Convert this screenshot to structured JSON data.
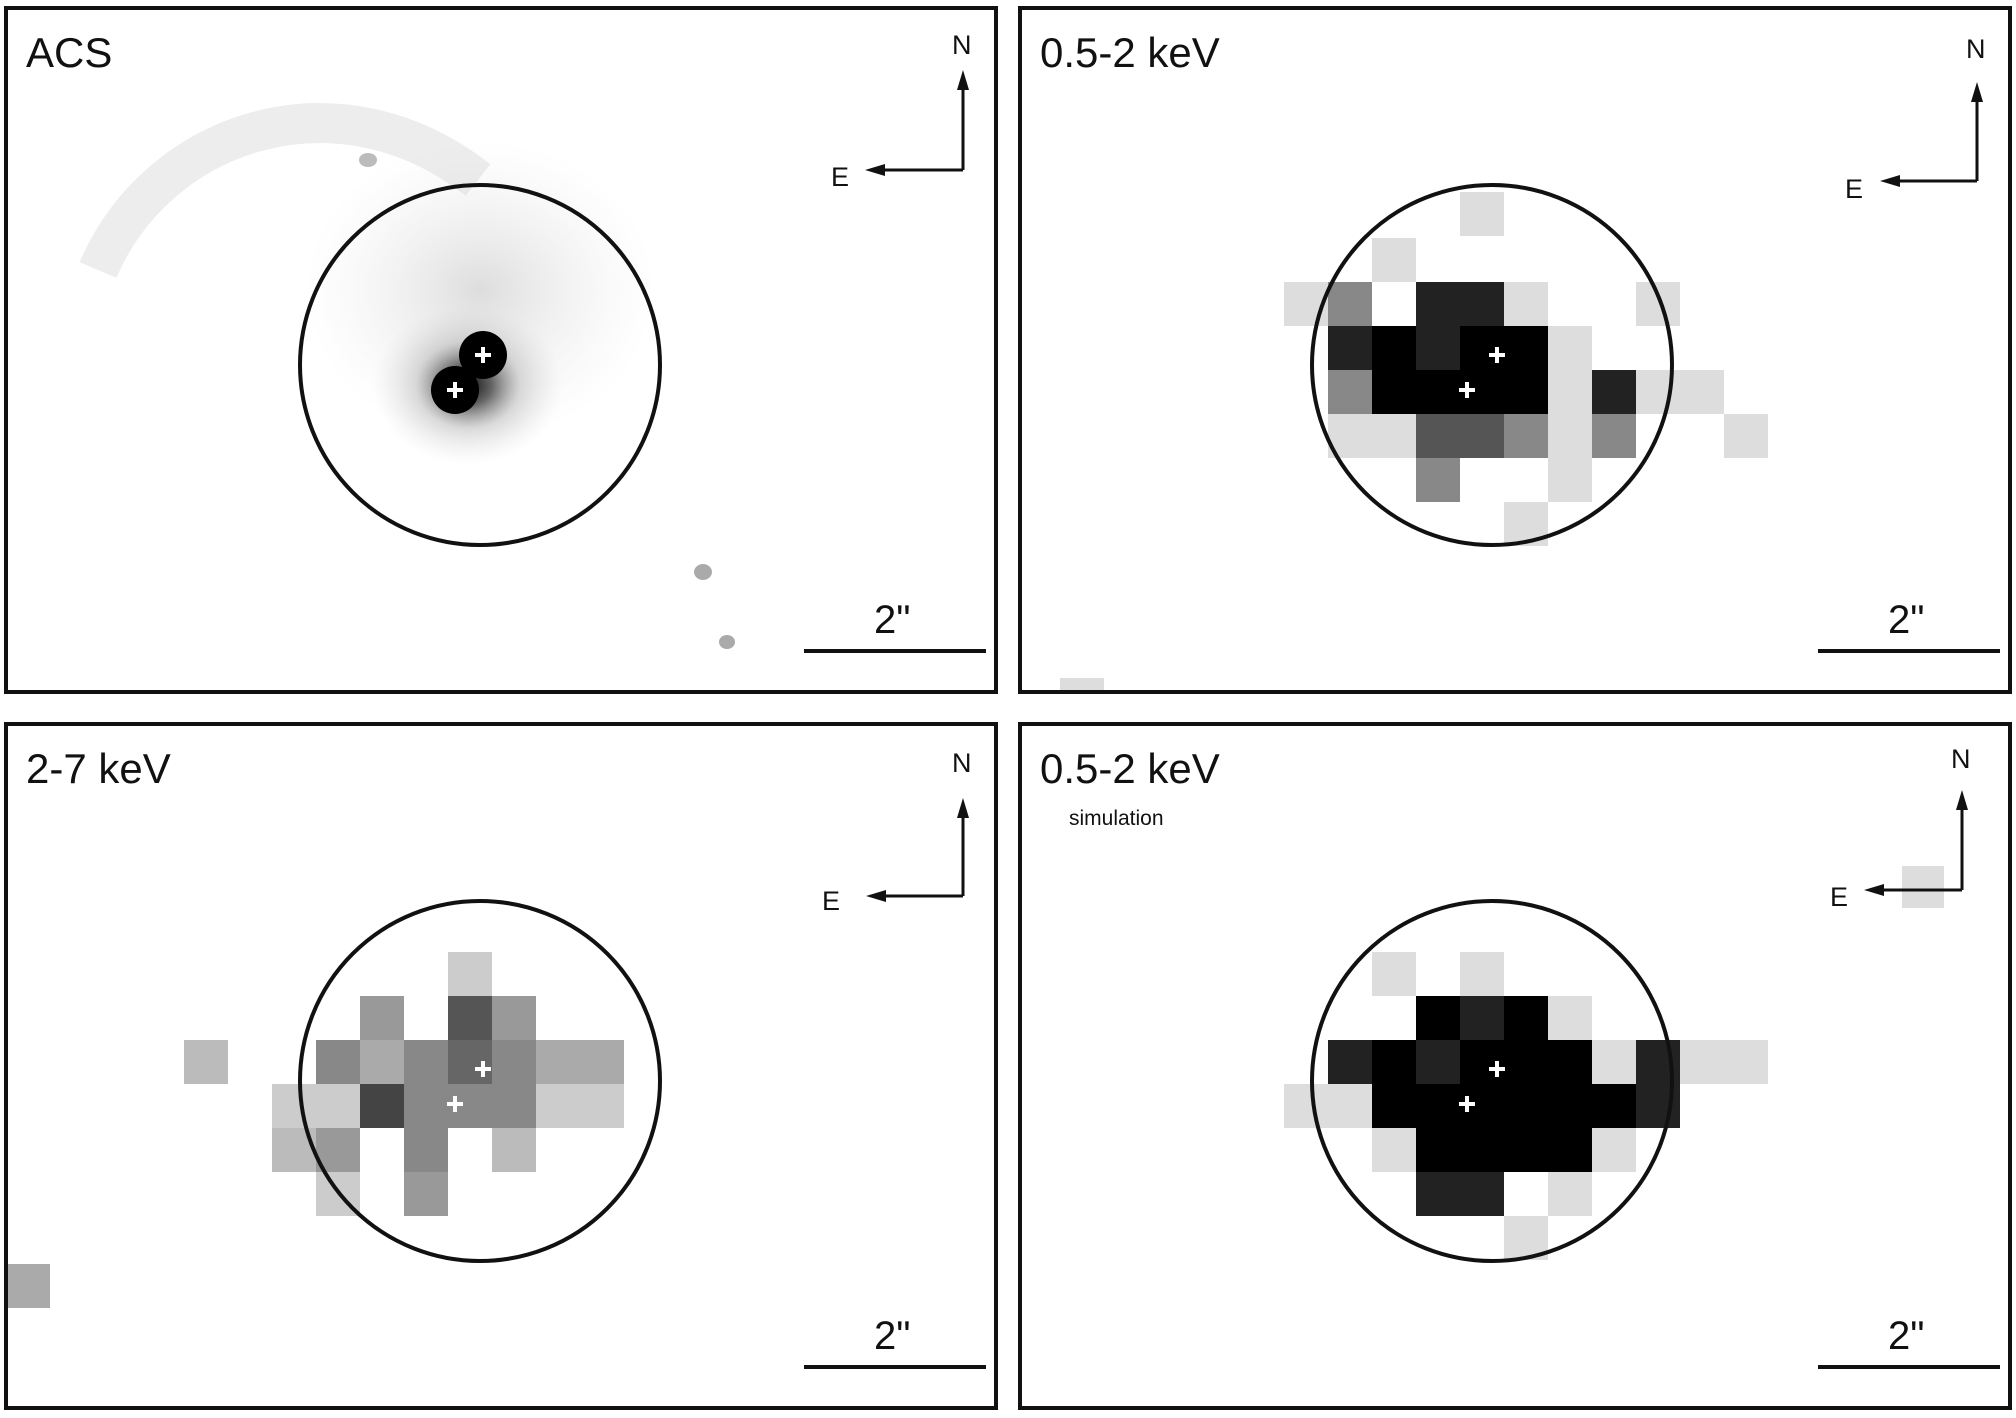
{
  "colors": {
    "frame": "#111111",
    "background": "#ffffff",
    "marker": "#ffffff"
  },
  "panels": [
    {
      "id": "acs",
      "title": "ACS",
      "subtitle": "",
      "north": "N",
      "east": "E",
      "scale_label": "2\""
    },
    {
      "id": "soft",
      "title": "0.5-2 keV",
      "subtitle": "",
      "north": "N",
      "east": "E",
      "scale_label": "2\""
    },
    {
      "id": "hard",
      "title": "2-7 keV",
      "subtitle": "",
      "north": "N",
      "east": "E",
      "scale_label": "2\""
    },
    {
      "id": "sim",
      "title": "0.5-2 keV",
      "subtitle": "simulation",
      "north": "N",
      "east": "E",
      "scale_label": "2\""
    }
  ],
  "icons": [
    "compass-arrows-icon",
    "scale-bar-icon",
    "source-cross-marker-icon"
  ]
}
